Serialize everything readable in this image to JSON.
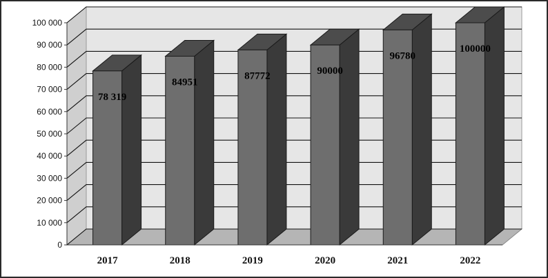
{
  "chart_data": {
    "type": "bar",
    "categories": [
      "2017",
      "2018",
      "2019",
      "2020",
      "2021",
      "2022"
    ],
    "values": [
      78319,
      84951,
      87772,
      90000,
      96780,
      100000
    ],
    "data_labels": [
      "78 319",
      "84951",
      "87772",
      "90000",
      "96780",
      "100000"
    ],
    "ytick_labels": [
      "0",
      "10 000",
      "20 000",
      "30 000",
      "40 000",
      "50 000",
      "60 000",
      "70 000",
      "80 000",
      "90 000",
      "100 000"
    ],
    "ylim": [
      0,
      100000
    ],
    "title": "",
    "xlabel": "",
    "ylabel": "",
    "grid": true,
    "legend": "none",
    "style": "3d-column",
    "colors": {
      "bar_front": "#6e6e6e",
      "bar_side": "#3a3a3a",
      "bar_top": "#4c4c4c",
      "back_wall": "#e6e6e6",
      "side_wall": "#cfcfcf",
      "floor": "#b5b5b5",
      "gridline": "#111111"
    }
  }
}
